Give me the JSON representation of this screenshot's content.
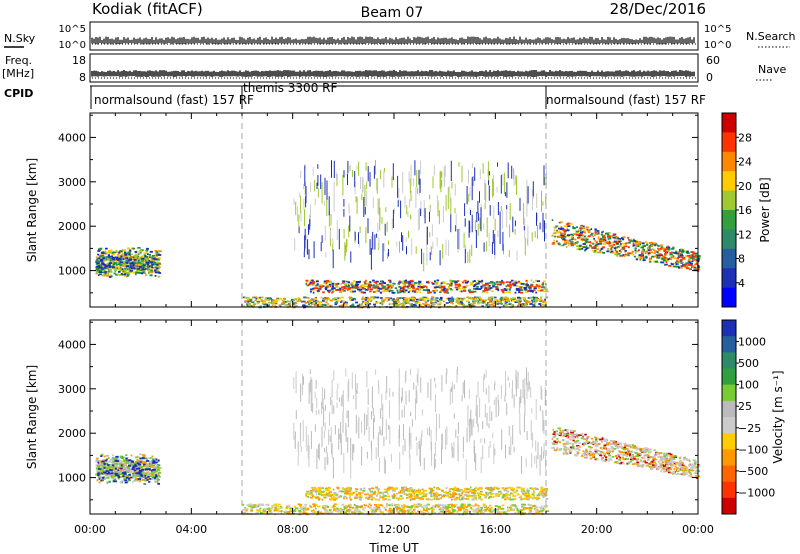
{
  "header": {
    "station": "Kodiak (fitACF)",
    "beam": "Beam 07",
    "date": "28/Dec/2016"
  },
  "strips": {
    "nsky_label": "N.Sky",
    "nsky_ticks": [
      "10^5",
      "10^0"
    ],
    "nsearch_label": "N.Search",
    "nsearch_ticks": [
      "10^5",
      "10^0"
    ],
    "freq_label": "Freq.",
    "freq_unit": "[MHz]",
    "freq_ticks": [
      "18",
      "8"
    ],
    "nave_label": "Nave",
    "nave_ticks": [
      "60",
      "0"
    ],
    "cpid_label": "CPID",
    "cpid_segments": [
      {
        "label": "normalsound (fast) 157 RF",
        "start_h": 0
      },
      {
        "label": "themis 3300 RF",
        "start_h": 6
      },
      {
        "label": "normalsound (fast) 157 RF",
        "start_h": 18
      }
    ]
  },
  "chart_data": [
    {
      "type": "heatmap",
      "ylabel": "Slant Range [km]",
      "xlabel": "Time UT",
      "x_ticks": [
        "00:00",
        "04:00",
        "08:00",
        "12:00",
        "16:00",
        "20:00",
        "00:00"
      ],
      "x_tick_hours": [
        0,
        4,
        8,
        12,
        16,
        20,
        24
      ],
      "xlim_hours": [
        0,
        24
      ],
      "y_ticks": [
        1000,
        2000,
        3000,
        4000
      ],
      "ylim": [
        180,
        4550
      ],
      "mode_change_hours": [
        6,
        18
      ],
      "colorbar": {
        "label": "Power [dB]",
        "ticks": [
          "28",
          "24",
          "20",
          "16",
          "12",
          "8",
          "4"
        ],
        "colors": [
          "#cc0000",
          "#ff3300",
          "#ff8800",
          "#ffcc00",
          "#a0c830",
          "#33a040",
          "#2f8a6a",
          "#255fa0",
          "#1c2fb5",
          "#0000ff"
        ]
      },
      "regions": [
        {
          "name": "night echoes early",
          "t0": 0.2,
          "t1": 2.7,
          "r0": 850,
          "r1": 1900,
          "palette": [
            "#0f8a3a",
            "#2f8a6a",
            "#a0c830",
            "#ffcc00",
            "#ff8800",
            "#1c2fb5"
          ]
        },
        {
          "name": "near-range scatter",
          "t0": 6,
          "t1": 18,
          "r0": 190,
          "r1": 420,
          "palette": [
            "#1c2fb5",
            "#255fa0",
            "#2f8a6a",
            "#a0c830",
            "#ffcc00",
            "#ff8800"
          ]
        },
        {
          "name": "E-region band",
          "t0": 8.5,
          "t1": 18,
          "r0": 520,
          "r1": 800,
          "palette": [
            "#1c2fb5",
            "#2f8a6a",
            "#a0c830",
            "#ffcc00",
            "#ff3300"
          ]
        },
        {
          "name": "night echoes late",
          "t0": 18.2,
          "t1": 24,
          "r0": 900,
          "r1": 2100,
          "palette": [
            "#0f8a3a",
            "#2f8a6a",
            "#a0c830",
            "#ffcc00",
            "#ff8800",
            "#ff3300",
            "#1c2fb5"
          ]
        },
        {
          "name": "sparse high range",
          "t0": 8,
          "t1": 18,
          "r0": 1400,
          "r1": 3500,
          "palette": [
            "#cccccc",
            "#a0c830",
            "#1c2fb5"
          ]
        }
      ]
    },
    {
      "type": "heatmap",
      "ylabel": "Slant Range [km]",
      "xlabel": "Time UT",
      "x_ticks": [
        "00:00",
        "04:00",
        "08:00",
        "12:00",
        "16:00",
        "20:00",
        "00:00"
      ],
      "x_tick_hours": [
        0,
        4,
        8,
        12,
        16,
        20,
        24
      ],
      "xlim_hours": [
        0,
        24
      ],
      "y_ticks": [
        1000,
        2000,
        3000,
        4000
      ],
      "ylim": [
        180,
        4550
      ],
      "mode_change_hours": [
        6,
        18
      ],
      "colorbar": {
        "label": "Velocity [m s⁻¹]",
        "ticks": [
          "1000",
          "500",
          "100",
          "25",
          "−25",
          "−100",
          "−500",
          "−1000"
        ],
        "colors": [
          "#1c2fb5",
          "#255fa0",
          "#2f8a6a",
          "#33a040",
          "#77cc33",
          "#bbbbbb",
          "#cccccc",
          "#ffcc00",
          "#ff9900",
          "#ff6600",
          "#ff3300",
          "#cc0000"
        ]
      },
      "regions": [
        {
          "name": "night echoes early",
          "t0": 0.2,
          "t1": 2.7,
          "r0": 850,
          "r1": 1900,
          "palette": [
            "#bbbbbb",
            "#cccccc",
            "#33a040",
            "#77cc33",
            "#ff9900",
            "#1c2fb5"
          ]
        },
        {
          "name": "near-range scatter",
          "t0": 6,
          "t1": 18,
          "r0": 190,
          "r1": 420,
          "palette": [
            "#ffcc00",
            "#ff9900",
            "#cccccc",
            "#77cc33"
          ]
        },
        {
          "name": "E-region band",
          "t0": 8.5,
          "t1": 18,
          "r0": 520,
          "r1": 800,
          "palette": [
            "#77cc33",
            "#ff9900",
            "#ffcc00",
            "#bbbbbb"
          ]
        },
        {
          "name": "night echoes late",
          "t0": 18.2,
          "t1": 24,
          "r0": 900,
          "r1": 2100,
          "palette": [
            "#bbbbbb",
            "#cccccc",
            "#ff9900",
            "#77cc33",
            "#cc0000"
          ]
        },
        {
          "name": "sparse high range",
          "t0": 8,
          "t1": 18,
          "r0": 1400,
          "r1": 3500,
          "palette": [
            "#bbbbbb",
            "#cccccc"
          ]
        }
      ]
    }
  ]
}
